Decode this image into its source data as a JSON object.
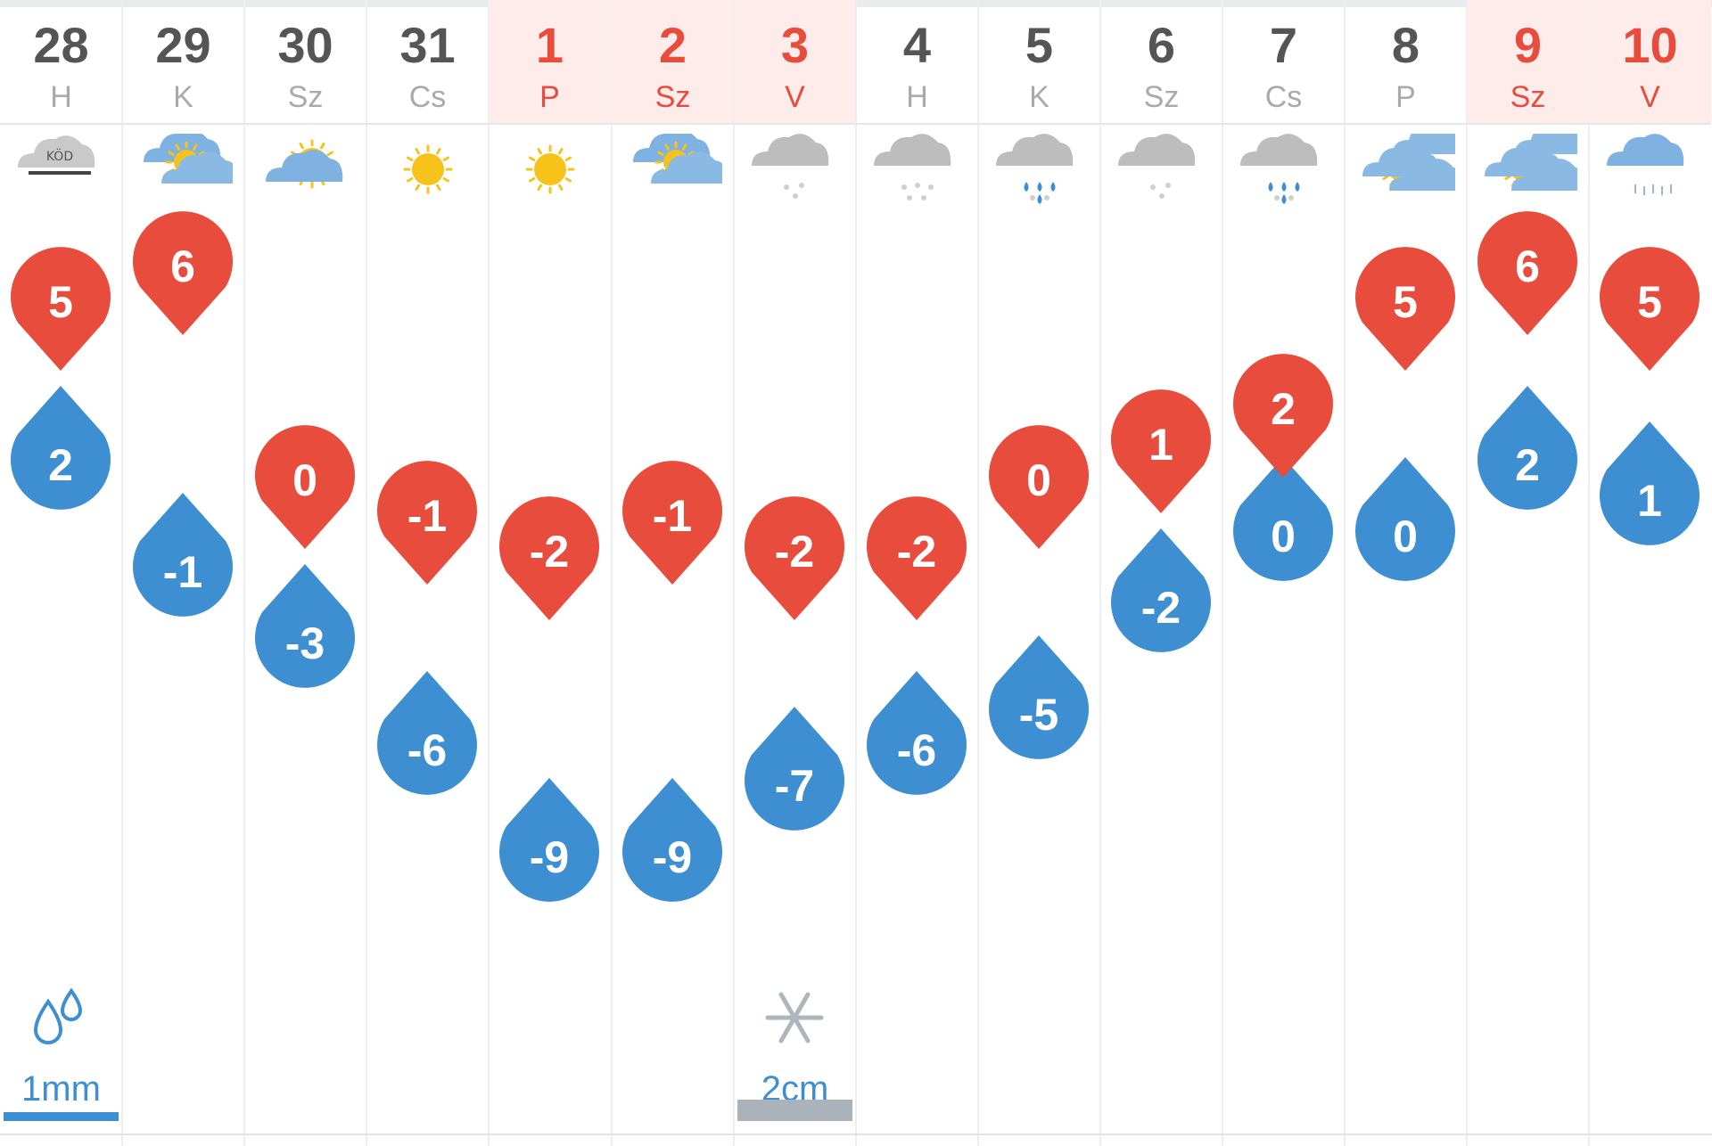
{
  "colors": {
    "max_temp": "#e74c3c",
    "min_temp": "#3d8fd1",
    "weekend_bg": "#fdecea",
    "weekend_text": "#e74c3c",
    "rain_bar": "#3d8fd1",
    "snow_bar": "#aab3ba",
    "snow_text": "#3d8fd1"
  },
  "days": [
    {
      "date": "28",
      "dow": "H",
      "weekend": false,
      "icon": "fog-icon",
      "max": "5",
      "min": "2",
      "precip": {
        "value": "1mm",
        "icon": "raindrops-icon",
        "kind": "rain"
      }
    },
    {
      "date": "29",
      "dow": "K",
      "weekend": false,
      "icon": "partly-cloudy-icon",
      "max": "6",
      "min": "-1"
    },
    {
      "date": "30",
      "dow": "Sz",
      "weekend": false,
      "icon": "mostly-sunny-icon",
      "max": "0",
      "min": "-3"
    },
    {
      "date": "31",
      "dow": "Cs",
      "weekend": false,
      "icon": "sun-icon",
      "max": "-1",
      "min": "-6"
    },
    {
      "date": "1",
      "dow": "P",
      "weekend": true,
      "icon": "sun-icon",
      "max": "-2",
      "min": "-9"
    },
    {
      "date": "2",
      "dow": "Sz",
      "weekend": true,
      "icon": "partly-cloudy-icon",
      "max": "-1",
      "min": "-9"
    },
    {
      "date": "3",
      "dow": "V",
      "weekend": true,
      "icon": "cloud-light-snow-icon",
      "max": "-2",
      "min": "-7",
      "precip": {
        "value": "2cm",
        "icon": "snowflake-icon",
        "kind": "snow"
      }
    },
    {
      "date": "4",
      "dow": "H",
      "weekend": false,
      "icon": "cloud-snow-icon",
      "max": "-2",
      "min": "-6"
    },
    {
      "date": "5",
      "dow": "K",
      "weekend": false,
      "icon": "cloud-sleet-icon",
      "max": "0",
      "min": "-5"
    },
    {
      "date": "6",
      "dow": "Sz",
      "weekend": false,
      "icon": "cloud-light-snow-icon",
      "max": "1",
      "min": "-2"
    },
    {
      "date": "7",
      "dow": "Cs",
      "weekend": false,
      "icon": "cloud-sleet-icon",
      "max": "2",
      "min": "0"
    },
    {
      "date": "8",
      "dow": "P",
      "weekend": false,
      "icon": "sun-and-clouds-icon",
      "max": "5",
      "min": "0"
    },
    {
      "date": "9",
      "dow": "Sz",
      "weekend": true,
      "icon": "sun-and-clouds-icon",
      "max": "6",
      "min": "2"
    },
    {
      "date": "10",
      "dow": "V",
      "weekend": true,
      "icon": "cloud-rain-icon",
      "max": "5",
      "min": "1"
    }
  ]
}
